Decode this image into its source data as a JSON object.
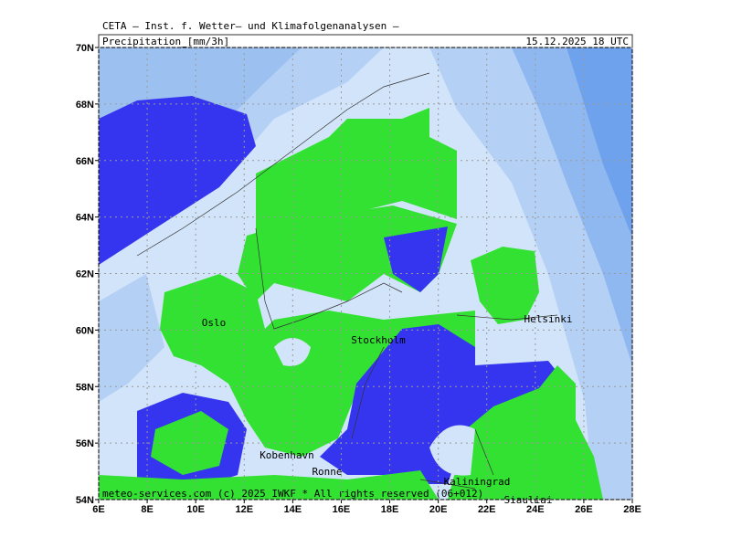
{
  "header": {
    "institute": "CETA – Inst. f. Wetter– und Klimafolgenanalysen –",
    "field": "Precipitation_[mm/3h]",
    "valid_time": "15.12.2025 18 UTC"
  },
  "map": {
    "lon_range": [
      6,
      28
    ],
    "lat_range": [
      54,
      70
    ],
    "lon_ticks": [
      {
        "value": 6,
        "label": "6E"
      },
      {
        "value": 8,
        "label": "8E"
      },
      {
        "value": 10,
        "label": "10E"
      },
      {
        "value": 12,
        "label": "12E"
      },
      {
        "value": 14,
        "label": "14E"
      },
      {
        "value": 16,
        "label": "16E"
      },
      {
        "value": 18,
        "label": "18E"
      },
      {
        "value": 20,
        "label": "20E"
      },
      {
        "value": 22,
        "label": "22E"
      },
      {
        "value": 24,
        "label": "24E"
      },
      {
        "value": 26,
        "label": "26E"
      },
      {
        "value": 28,
        "label": "28E"
      }
    ],
    "lat_ticks": [
      {
        "value": 54,
        "label": "54N"
      },
      {
        "value": 56,
        "label": "56N"
      },
      {
        "value": 58,
        "label": "58N"
      },
      {
        "value": 60,
        "label": "60N"
      },
      {
        "value": 62,
        "label": "62N"
      },
      {
        "value": 64,
        "label": "64N"
      },
      {
        "value": 66,
        "label": "66N"
      },
      {
        "value": 68,
        "label": "68N"
      },
      {
        "value": 70,
        "label": "70N"
      }
    ],
    "cities": [
      "Oslo",
      "Stockholm",
      "Helsinki",
      "Kobenhavn",
      "Ronne",
      "Kaliningrad",
      "Siauliai"
    ]
  },
  "footer": "meteo-services.com (c) 2025 IWKF * All rights reserved (06+012)"
}
